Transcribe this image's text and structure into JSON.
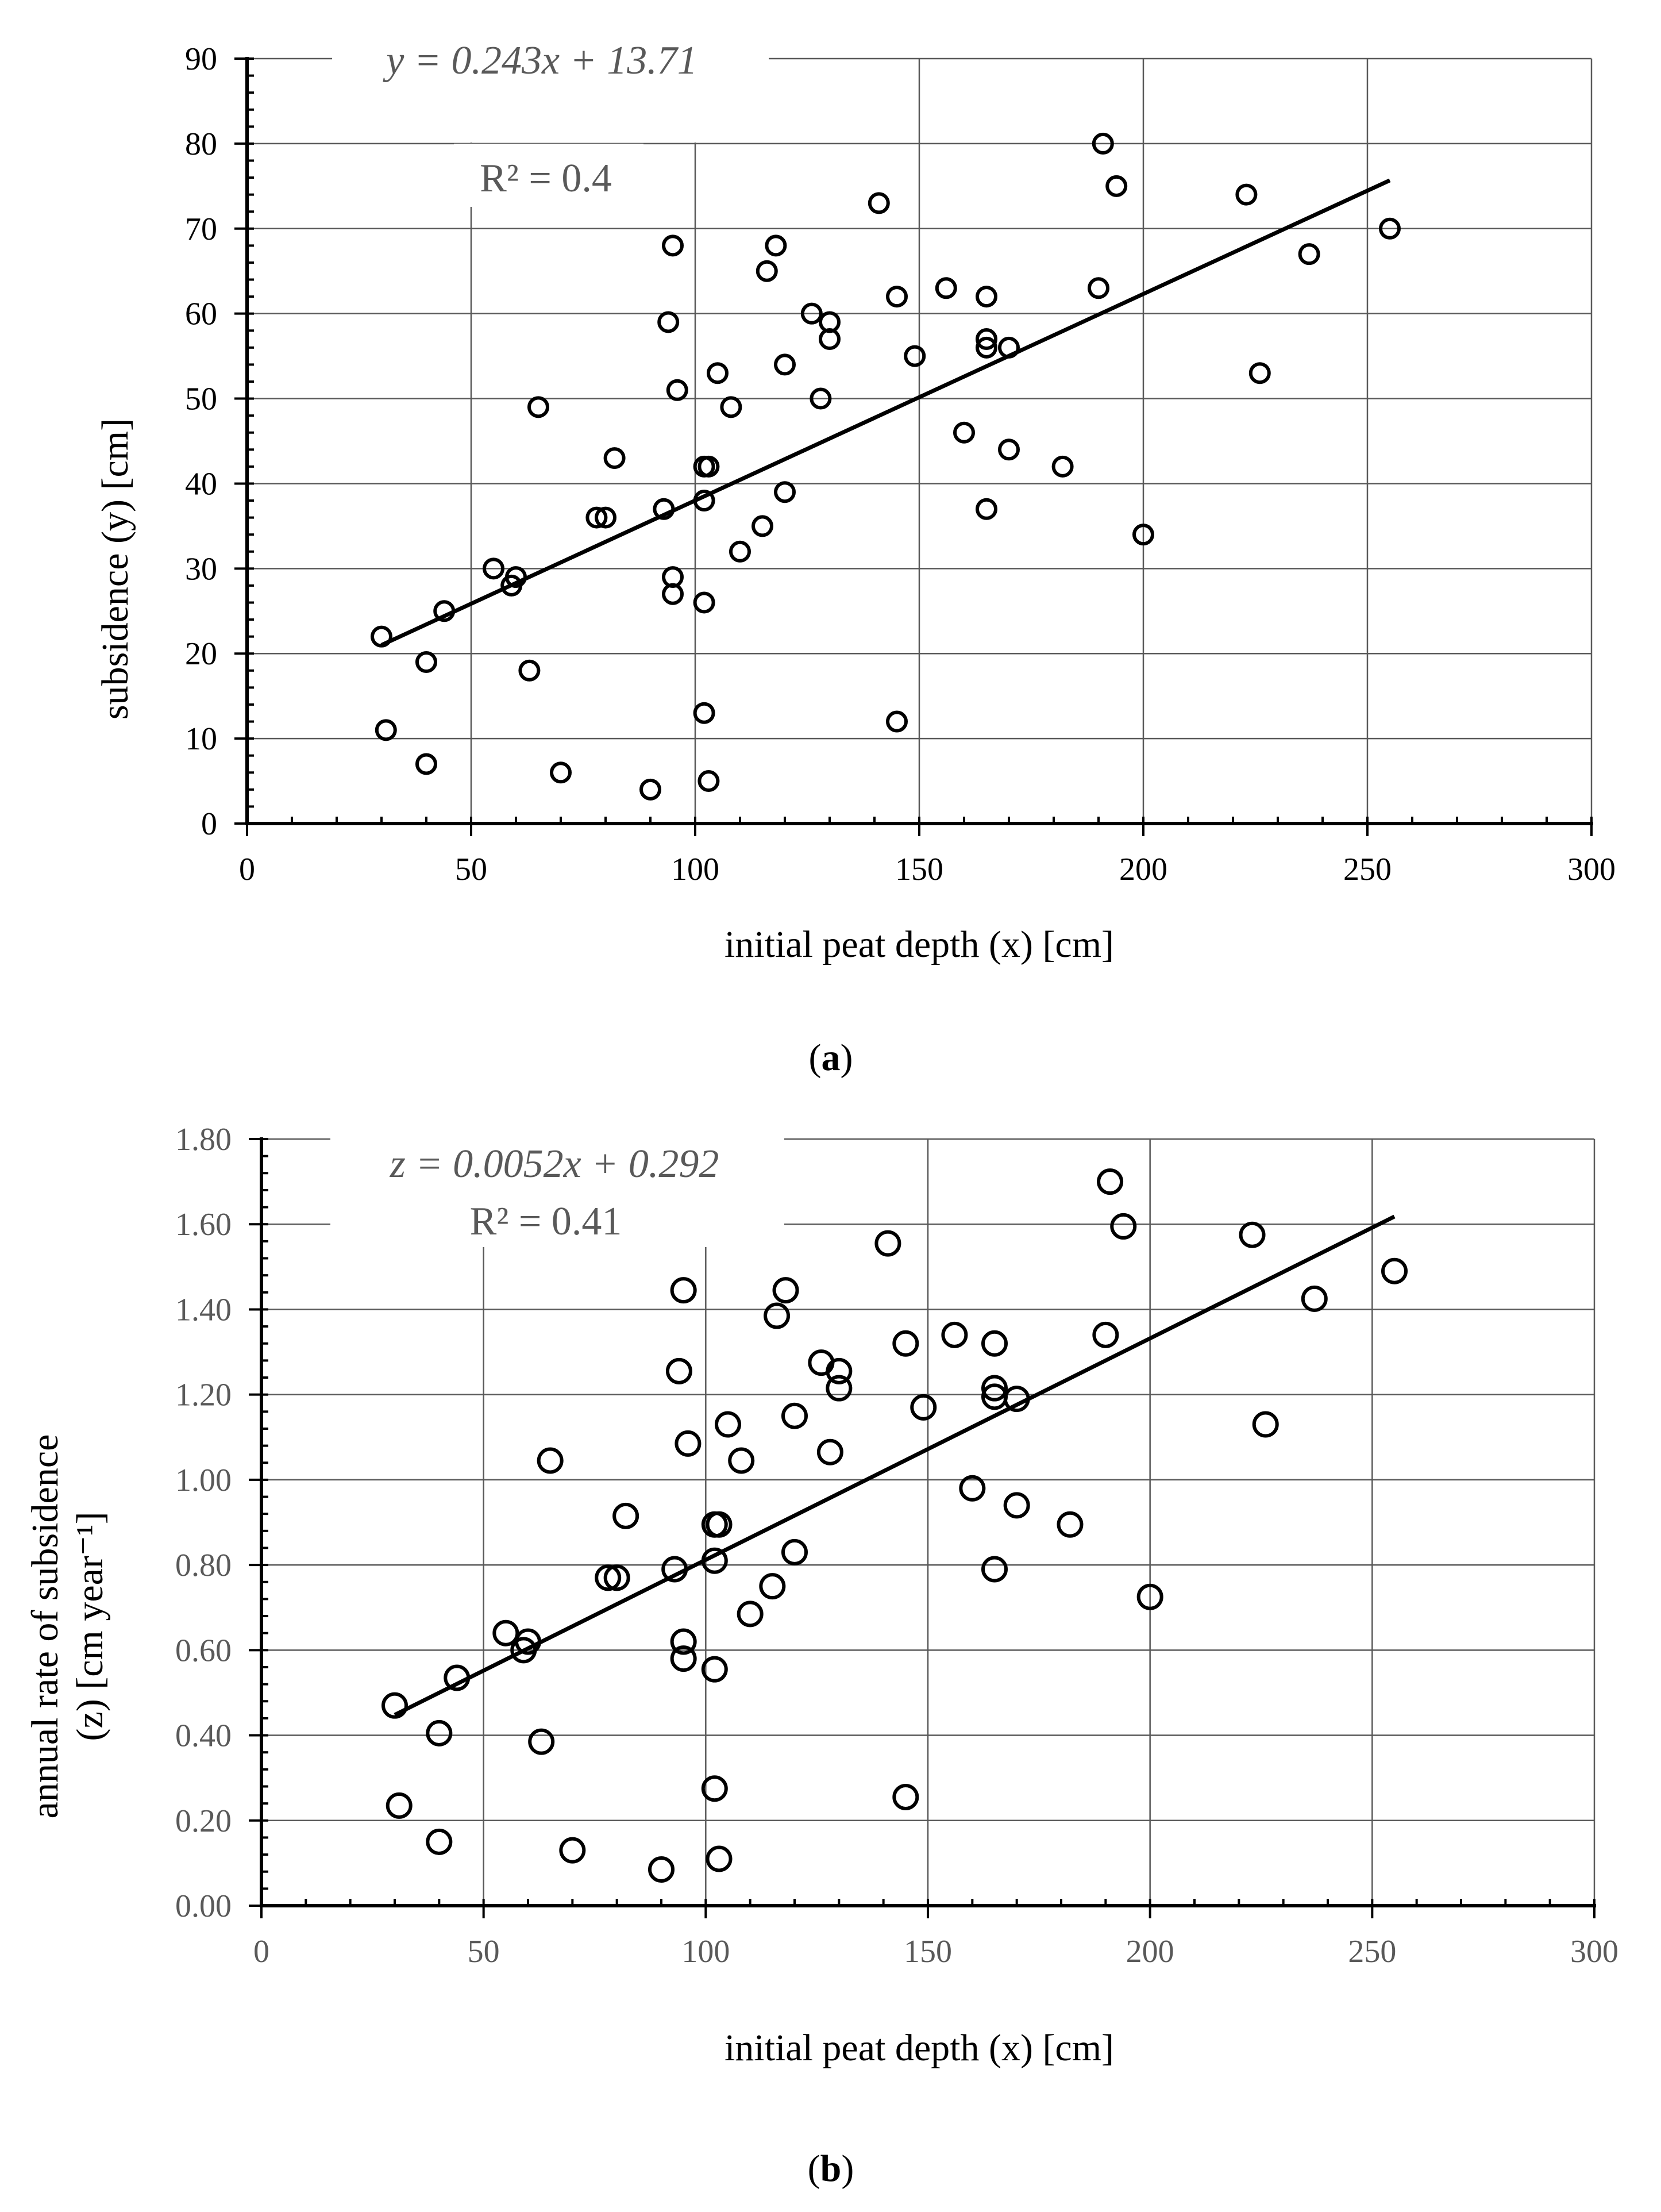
{
  "chart_data": [
    {
      "type": "scatter",
      "panel_label": "(a)",
      "panel_letter": "a",
      "xlabel": "initial peat depth (x) [cm]",
      "ylabel": "subsidence (y) [cm]",
      "xlim": [
        0,
        300
      ],
      "ylim": [
        0,
        90
      ],
      "xticks": [
        0,
        50,
        100,
        150,
        200,
        250,
        300
      ],
      "xtick_labels": [
        "0",
        "50",
        "100",
        "150",
        "200",
        "250",
        "300"
      ],
      "yticks": [
        0,
        10,
        20,
        30,
        40,
        50,
        60,
        70,
        80,
        90
      ],
      "ytick_labels": [
        "0",
        "10",
        "20",
        "30",
        "40",
        "50",
        "60",
        "70",
        "80",
        "90"
      ],
      "grid": true,
      "equation": "y = 0.243x + 13.71",
      "r_squared": "R² = 0.4",
      "trendline": {
        "slope": 0.243,
        "intercept": 13.71,
        "x_range": [
          30,
          255
        ]
      },
      "series": [
        {
          "name": "observations",
          "x": [
            30,
            31,
            40,
            40,
            44,
            55,
            59,
            60,
            63,
            65,
            70,
            78,
            80,
            82,
            90,
            93,
            94,
            95,
            95,
            95,
            96,
            102,
            102,
            102,
            102,
            103,
            103,
            105,
            108,
            110,
            115,
            116,
            118,
            120,
            120,
            126,
            128,
            130,
            130,
            141,
            145,
            145,
            149,
            156,
            160,
            165,
            165,
            165,
            165,
            170,
            170,
            182,
            190,
            191,
            194,
            200,
            223,
            226,
            237,
            255
          ],
          "y": [
            22,
            11,
            19,
            7,
            25,
            30,
            28,
            29,
            18,
            49,
            6,
            36,
            36,
            43,
            4,
            37,
            59,
            68,
            29,
            27,
            51,
            38,
            26,
            13,
            42,
            5,
            42,
            53,
            49,
            32,
            35,
            65,
            68,
            39,
            54,
            60,
            50,
            59,
            57,
            73,
            62,
            12,
            55,
            63,
            46,
            62,
            57,
            56,
            37,
            56,
            44,
            42,
            63,
            80,
            75,
            34,
            74,
            53,
            67,
            70
          ]
        }
      ]
    },
    {
      "type": "scatter",
      "panel_label": "(b)",
      "panel_letter": "b",
      "xlabel": "initial peat depth (x) [cm]",
      "ylabel_line1": "annual rate of subsidence",
      "ylabel_line2": "(z) [cm year⁻¹]",
      "xlim": [
        0,
        300
      ],
      "ylim": [
        0,
        1.8
      ],
      "xticks": [
        0,
        50,
        100,
        150,
        200,
        250,
        300
      ],
      "xtick_labels": [
        "0",
        "50",
        "100",
        "150",
        "200",
        "250",
        "300"
      ],
      "yticks": [
        0,
        0.2,
        0.4,
        0.6,
        0.8,
        1.0,
        1.2,
        1.4,
        1.6,
        1.8
      ],
      "ytick_labels": [
        "0.00",
        "0.20",
        "0.40",
        "0.60",
        "0.80",
        "1.00",
        "1.20",
        "1.40",
        "1.60",
        "1.80"
      ],
      "grid": true,
      "equation": "z = 0.0052x + 0.292",
      "r_squared": "R² = 0.41",
      "trendline": {
        "slope": 0.0052,
        "intercept": 0.292,
        "x_range": [
          30,
          255
        ]
      },
      "series": [
        {
          "name": "observations",
          "x": [
            30,
            31,
            40,
            40,
            44,
            55,
            59,
            60,
            63,
            65,
            70,
            78,
            80,
            82,
            90,
            93,
            94,
            95,
            95,
            95,
            96,
            102,
            102,
            102,
            102,
            103,
            103,
            105,
            108,
            110,
            115,
            116,
            118,
            120,
            120,
            126,
            128,
            130,
            130,
            141,
            145,
            145,
            149,
            156,
            160,
            165,
            165,
            165,
            165,
            170,
            170,
            182,
            190,
            191,
            194,
            200,
            223,
            226,
            237,
            255
          ],
          "y": [
            0.47,
            0.235,
            0.405,
            0.15,
            0.535,
            0.64,
            0.6,
            0.62,
            0.385,
            1.045,
            0.13,
            0.77,
            0.77,
            0.915,
            0.085,
            0.79,
            1.255,
            1.445,
            0.62,
            0.58,
            1.085,
            0.81,
            0.555,
            0.275,
            0.895,
            0.11,
            0.895,
            1.13,
            1.045,
            0.685,
            0.75,
            1.385,
            1.445,
            0.83,
            1.15,
            1.275,
            1.065,
            1.255,
            1.215,
            1.555,
            1.32,
            0.255,
            1.17,
            1.34,
            0.98,
            1.32,
            1.215,
            1.195,
            0.79,
            1.19,
            0.94,
            0.895,
            1.34,
            1.7,
            1.595,
            0.725,
            1.575,
            1.13,
            1.425,
            1.49
          ]
        }
      ]
    }
  ]
}
